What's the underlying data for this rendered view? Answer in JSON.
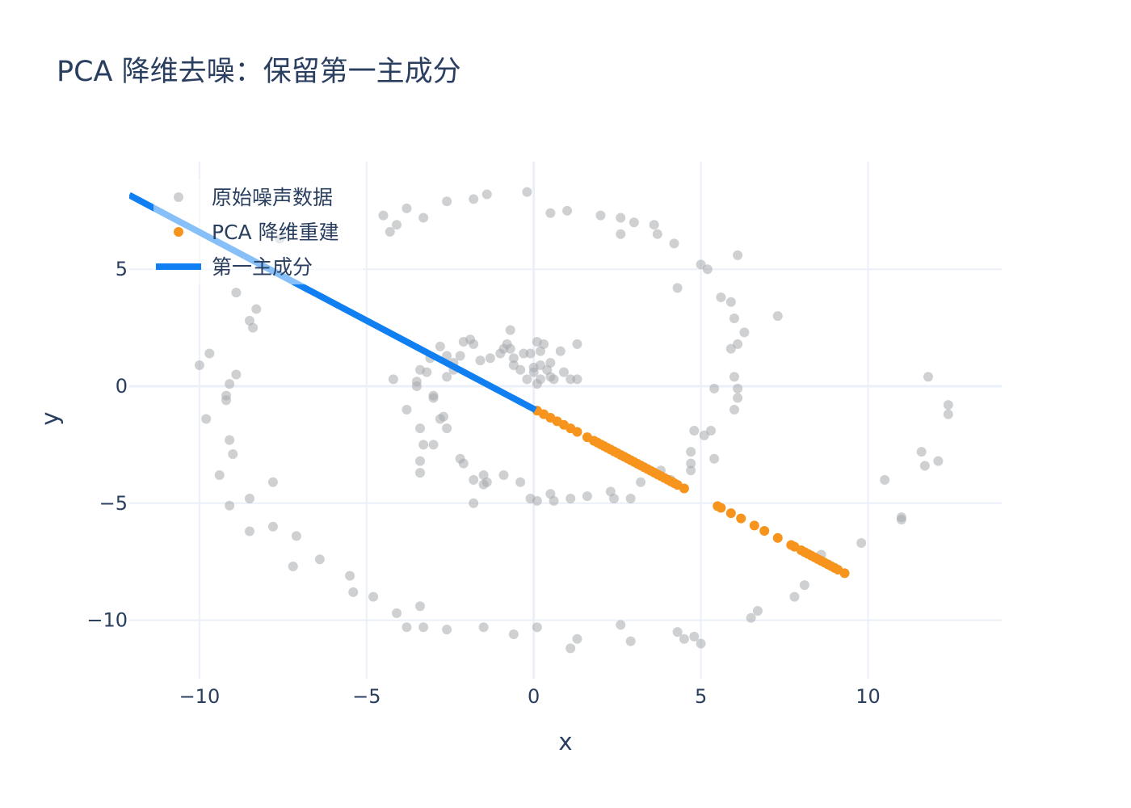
{
  "chart_data": {
    "type": "scatter",
    "title": "PCA 降维去噪：保留第一主成分",
    "xlabel": "x",
    "ylabel": "y",
    "xlim": [
      -12.1,
      14.0
    ],
    "ylim": [
      -12.5,
      9.6
    ],
    "xticks": [
      -10,
      -5,
      0,
      5,
      10
    ],
    "yticks": [
      -10,
      -5,
      0,
      5
    ],
    "xtick_labels": [
      "−10",
      "−5",
      "0",
      "5",
      "10"
    ],
    "ytick_labels": [
      "−10",
      "−5",
      "0",
      "5"
    ],
    "grid": true,
    "legend_position": "top-left",
    "series": [
      {
        "name": "原始噪声数据",
        "mode": "markers",
        "color": "#a5a9ad",
        "points": [
          [
            -10,
            0.9
          ],
          [
            -9.8,
            -1.4
          ],
          [
            -9.7,
            1.4
          ],
          [
            -9.4,
            -3.8
          ],
          [
            -9.2,
            -0.6
          ],
          [
            -9.1,
            0.1
          ],
          [
            -9.2,
            -0.4
          ],
          [
            -9.1,
            -2.3
          ],
          [
            -9.0,
            -2.9
          ],
          [
            -8.9,
            0.5
          ],
          [
            -8.9,
            4.0
          ],
          [
            -9.1,
            -5.1
          ],
          [
            -8.5,
            2.8
          ],
          [
            -8.4,
            2.5
          ],
          [
            -8.3,
            3.3
          ],
          [
            -8.5,
            -4.8
          ],
          [
            -8.5,
            -6.2
          ],
          [
            -7.8,
            -4.1
          ],
          [
            -7.8,
            -6.0
          ],
          [
            -7.6,
            6.3
          ],
          [
            -7.1,
            -6.4
          ],
          [
            -7.2,
            -7.7
          ],
          [
            -6.4,
            -7.4
          ],
          [
            -5.5,
            -8.1
          ],
          [
            -5.4,
            -8.8
          ],
          [
            -4.8,
            -9.0
          ],
          [
            -4.3,
            6.6
          ],
          [
            -4.5,
            7.3
          ],
          [
            -4.1,
            6.9
          ],
          [
            -3.8,
            7.6
          ],
          [
            -3.3,
            7.2
          ],
          [
            -4.1,
            -9.7
          ],
          [
            -3.8,
            -10.3
          ],
          [
            -3.4,
            -9.4
          ],
          [
            -3.3,
            -10.3
          ],
          [
            -2.6,
            -10.4
          ],
          [
            -2.6,
            7.9
          ],
          [
            -1.8,
            8.0
          ],
          [
            -1.4,
            8.2
          ],
          [
            -1.5,
            -10.3
          ],
          [
            -0.6,
            -10.6
          ],
          [
            -0.2,
            8.3
          ],
          [
            0.1,
            -10.3
          ],
          [
            0.5,
            7.4
          ],
          [
            1.0,
            7.5
          ],
          [
            1.1,
            -11.2
          ],
          [
            1.3,
            -10.8
          ],
          [
            2.0,
            7.3
          ],
          [
            2.6,
            7.2
          ],
          [
            2.6,
            6.5
          ],
          [
            2.6,
            -10.2
          ],
          [
            2.9,
            -10.9
          ],
          [
            3.0,
            7.0
          ],
          [
            3.6,
            6.9
          ],
          [
            3.7,
            6.5
          ],
          [
            4.2,
            6.1
          ],
          [
            4.3,
            4.2
          ],
          [
            4.3,
            -10.5
          ],
          [
            4.5,
            -10.8
          ],
          [
            4.8,
            -10.7
          ],
          [
            5.0,
            -11.0
          ],
          [
            5.0,
            5.2
          ],
          [
            5.2,
            5.0
          ],
          [
            5.6,
            3.8
          ],
          [
            5.9,
            3.6
          ],
          [
            6.1,
            5.6
          ],
          [
            6.0,
            2.9
          ],
          [
            6.3,
            2.3
          ],
          [
            6.1,
            1.8
          ],
          [
            5.9,
            1.6
          ],
          [
            6.0,
            0.4
          ],
          [
            6.1,
            -0.1
          ],
          [
            6.1,
            -0.5
          ],
          [
            6.0,
            -1.0
          ],
          [
            5.4,
            -0.1
          ],
          [
            7.3,
            3.0
          ],
          [
            6.5,
            -9.9
          ],
          [
            6.7,
            -9.6
          ],
          [
            7.8,
            -9.0
          ],
          [
            8.1,
            -8.5
          ],
          [
            8.6,
            -7.2
          ],
          [
            9.8,
            -6.7
          ],
          [
            10.5,
            -4.0
          ],
          [
            11.0,
            -5.6
          ],
          [
            11.0,
            -5.7
          ],
          [
            11.6,
            -2.8
          ],
          [
            11.7,
            -3.4
          ],
          [
            11.8,
            0.4
          ],
          [
            12.1,
            -3.2
          ],
          [
            12.4,
            -1.2
          ],
          [
            12.4,
            -0.8
          ],
          [
            4.8,
            -1.9
          ],
          [
            5.1,
            -2.1
          ],
          [
            5.3,
            -1.9
          ],
          [
            4.7,
            -2.8
          ],
          [
            4.7,
            -3.3
          ],
          [
            4.7,
            -3.6
          ],
          [
            5.4,
            -3.1
          ],
          [
            3.8,
            -3.6
          ],
          [
            4.1,
            -4.0
          ],
          [
            3.2,
            -4.1
          ],
          [
            2.3,
            -4.5
          ],
          [
            2.4,
            -4.8
          ],
          [
            2.9,
            -4.8
          ],
          [
            1.6,
            -4.7
          ],
          [
            1.1,
            -4.8
          ],
          [
            0.5,
            -4.6
          ],
          [
            0.6,
            -4.9
          ],
          [
            0.1,
            -4.9
          ],
          [
            -0.1,
            -4.8
          ],
          [
            -0.4,
            -4.1
          ],
          [
            -0.9,
            -3.8
          ],
          [
            -1.5,
            -3.8
          ],
          [
            -1.4,
            -4.1
          ],
          [
            -1.5,
            -4.2
          ],
          [
            -1.8,
            -4.0
          ],
          [
            -2.2,
            -3.1
          ],
          [
            -2.1,
            -3.3
          ],
          [
            -1.8,
            -5.0
          ],
          [
            -3.4,
            -3.7
          ],
          [
            -3.4,
            -3.2
          ],
          [
            -3.3,
            -2.5
          ],
          [
            -3.0,
            -2.5
          ],
          [
            -3.4,
            -1.8
          ],
          [
            -2.7,
            -1.3
          ],
          [
            -2.6,
            -1.8
          ],
          [
            -2.8,
            -1.4
          ],
          [
            -3.8,
            -1.0
          ],
          [
            -3.0,
            -0.4
          ],
          [
            -3.0,
            -0.5
          ],
          [
            -3.5,
            0.0
          ],
          [
            -4.2,
            0.3
          ],
          [
            -3.4,
            0.7
          ],
          [
            -3.2,
            0.6
          ],
          [
            -2.6,
            0.4
          ],
          [
            -2.4,
            0.7
          ],
          [
            -3.1,
            1.2
          ],
          [
            -2.8,
            1.7
          ],
          [
            -2.6,
            1.3
          ],
          [
            -2.2,
            1.3
          ],
          [
            -2.1,
            1.9
          ],
          [
            -1.8,
            1.8
          ],
          [
            -1.6,
            1.1
          ],
          [
            -1.3,
            1.2
          ],
          [
            -0.9,
            1.6
          ],
          [
            -0.8,
            1.8
          ],
          [
            -0.7,
            2.4
          ],
          [
            -0.6,
            1.2
          ],
          [
            -0.6,
            0.9
          ],
          [
            -0.4,
            0.7
          ],
          [
            -0.3,
            1.4
          ],
          [
            -0.1,
            1.4
          ],
          [
            0.0,
            0.8
          ],
          [
            0.1,
            1.9
          ],
          [
            0.2,
            1.5
          ],
          [
            0.3,
            1.8
          ],
          [
            0.2,
            0.9
          ],
          [
            0.4,
            0.7
          ],
          [
            0.5,
            0.4
          ],
          [
            0.2,
            0.3
          ],
          [
            0.1,
            0.1
          ],
          [
            0.5,
            1.0
          ],
          [
            0.6,
            0.3
          ],
          [
            0.8,
            1.5
          ],
          [
            0.9,
            0.6
          ],
          [
            1.1,
            0.3
          ],
          [
            1.3,
            0.3
          ],
          [
            1.3,
            1.8
          ],
          [
            0.0,
            0.6
          ],
          [
            -0.2,
            0.3
          ],
          [
            -0.7,
            1.6
          ],
          [
            -1.0,
            1.4
          ],
          [
            -1.9,
            2.0
          ],
          [
            -2.4,
            1.0
          ],
          [
            -3.5,
            0.2
          ]
        ]
      },
      {
        "name": "PCA 降维重建",
        "mode": "markers",
        "color": "#f7941d",
        "x_values": [
          0.1,
          0.3,
          0.5,
          0.7,
          0.9,
          1.1,
          1.3,
          1.6,
          1.8,
          1.9,
          2.0,
          2.1,
          2.2,
          2.3,
          2.4,
          2.5,
          2.6,
          2.7,
          2.8,
          2.9,
          3.0,
          3.1,
          3.2,
          3.3,
          3.4,
          3.5,
          3.6,
          3.7,
          3.8,
          3.9,
          4.0,
          4.1,
          4.2,
          4.3,
          4.5,
          5.5,
          5.6,
          5.9,
          6.2,
          6.6,
          6.9,
          7.3,
          7.7,
          7.8,
          8.0,
          8.1,
          8.2,
          8.3,
          8.4,
          8.5,
          8.6,
          8.7,
          8.8,
          8.9,
          9.0,
          9.1,
          9.3
        ],
        "line_slope": -0.755,
        "line_intercept": -0.97
      },
      {
        "name": "第一主成分",
        "mode": "lines",
        "color": "#0f7ff1",
        "x": [
          -12.1,
          0.05
        ],
        "y": [
          8.17,
          -1.01
        ]
      }
    ]
  }
}
